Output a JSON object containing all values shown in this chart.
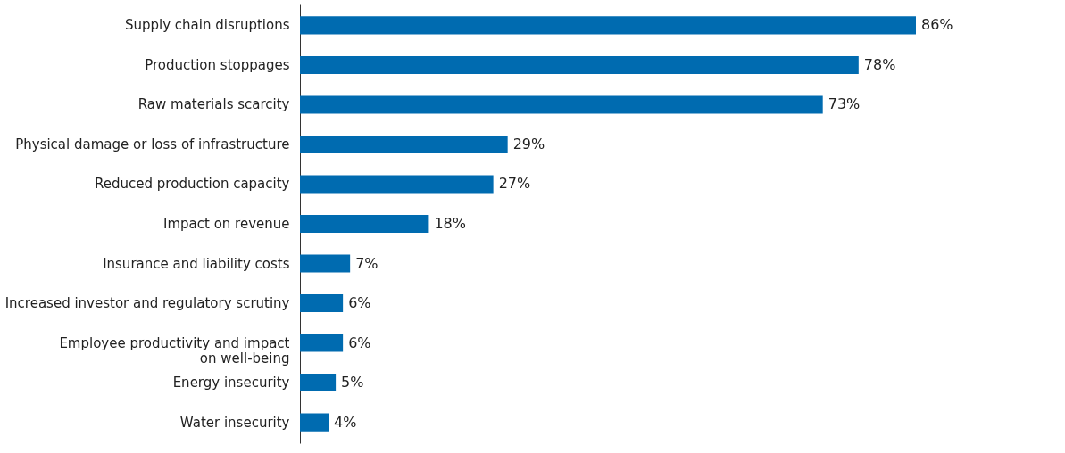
{
  "chart_data": {
    "type": "bar",
    "orientation": "horizontal",
    "categories": [
      "Supply chain disruptions",
      "Production stoppages",
      "Raw materials scarcity",
      "Physical damage or loss of infrastructure",
      "Reduced production capacity",
      "Impact on revenue",
      "Insurance and liability costs",
      "Increased investor and regulatory scrutiny",
      "Employee productivity and impact on well-being",
      "Energy insecurity",
      "Water insecurity"
    ],
    "values": [
      86,
      78,
      73,
      29,
      27,
      18,
      7,
      6,
      6,
      5,
      4
    ],
    "value_labels": [
      "86%",
      "78%",
      "73%",
      "29%",
      "27%",
      "18%",
      "7%",
      "6%",
      "6%",
      "5%",
      "4%"
    ],
    "color": "#006bb0"
  }
}
